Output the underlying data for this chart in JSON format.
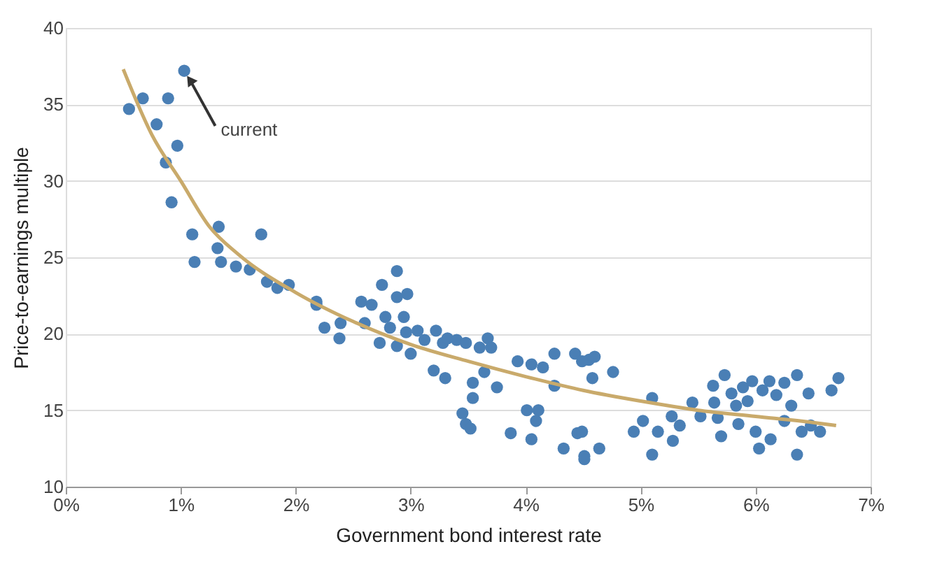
{
  "chart_data": {
    "type": "scatter",
    "xlabel": "Government bond interest rate",
    "ylabel": "Price-to-earnings multiple",
    "xlim": [
      0,
      7
    ],
    "ylim": [
      10,
      40
    ],
    "xticks": [
      {
        "value": 0,
        "label": "0%"
      },
      {
        "value": 1,
        "label": "1%"
      },
      {
        "value": 2,
        "label": "2%"
      },
      {
        "value": 3,
        "label": "3%"
      },
      {
        "value": 4,
        "label": "4%"
      },
      {
        "value": 5,
        "label": "5%"
      },
      {
        "value": 6,
        "label": "6%"
      },
      {
        "value": 7,
        "label": "7%"
      }
    ],
    "yticks": [
      10,
      15,
      20,
      25,
      30,
      35,
      40
    ],
    "grid": "y",
    "marker": "circle",
    "annotations": [
      {
        "text": "current",
        "x": 1.03,
        "y": 37.2
      }
    ],
    "series": [
      {
        "color": "#4a7fb5",
        "x": [
          0.55,
          0.67,
          0.89,
          1.03,
          0.79,
          0.97,
          0.87,
          0.92,
          1.1,
          1.12,
          1.33,
          1.32,
          1.35,
          1.48,
          1.6,
          1.7,
          1.75,
          1.84,
          1.94,
          2.18,
          2.18,
          2.25,
          2.39,
          2.38,
          2.57,
          2.66,
          2.75,
          2.88,
          2.88,
          2.97,
          2.6,
          2.73,
          2.78,
          2.82,
          2.88,
          2.94,
          2.96,
          3.0,
          3.06,
          3.12,
          3.22,
          3.28,
          3.32,
          3.4,
          3.48,
          3.2,
          3.3,
          3.45,
          3.48,
          3.52,
          3.54,
          3.54,
          3.6,
          3.67,
          3.7,
          3.75,
          3.64,
          3.87,
          4.05,
          4.01,
          4.11,
          4.09,
          3.93,
          4.05,
          4.15,
          4.25,
          4.25,
          4.33,
          4.43,
          4.45,
          4.51,
          4.55,
          4.49,
          4.6,
          4.58,
          4.76,
          4.49,
          4.51,
          4.64,
          4.94,
          5.02,
          5.1,
          5.15,
          5.1,
          5.27,
          5.28,
          5.34,
          5.45,
          5.52,
          5.63,
          5.64,
          5.67,
          5.7,
          5.73,
          5.79,
          5.83,
          5.85,
          5.89,
          5.93,
          5.97,
          6.0,
          6.03,
          6.06,
          6.12,
          6.13,
          6.18,
          6.25,
          6.25,
          6.31,
          6.36,
          6.36,
          6.4,
          6.46,
          6.48,
          6.56,
          6.66,
          6.72
        ],
        "values": [
          34.7,
          35.4,
          35.4,
          37.2,
          33.7,
          32.3,
          31.2,
          28.6,
          26.5,
          24.7,
          27.0,
          25.6,
          24.7,
          24.4,
          24.2,
          26.5,
          23.4,
          23.0,
          23.2,
          22.1,
          21.9,
          20.4,
          20.7,
          19.7,
          22.1,
          21.9,
          23.2,
          24.1,
          22.4,
          22.6,
          20.7,
          19.4,
          21.1,
          20.4,
          19.2,
          21.1,
          20.1,
          18.7,
          20.2,
          19.6,
          20.2,
          19.4,
          19.7,
          19.6,
          19.4,
          17.6,
          17.1,
          14.8,
          14.1,
          13.8,
          16.8,
          15.8,
          19.1,
          19.7,
          19.1,
          16.5,
          17.5,
          13.5,
          13.1,
          15.0,
          15.0,
          14.3,
          18.2,
          18.0,
          17.8,
          18.7,
          16.6,
          12.5,
          18.7,
          13.5,
          11.8,
          18.3,
          18.2,
          18.5,
          17.1,
          17.5,
          13.6,
          12.0,
          12.5,
          13.6,
          14.3,
          15.8,
          13.6,
          12.1,
          14.6,
          13.0,
          14.0,
          15.5,
          14.6,
          16.6,
          15.5,
          14.5,
          13.3,
          17.3,
          16.1,
          15.3,
          14.1,
          16.5,
          15.6,
          16.9,
          13.6,
          12.5,
          16.3,
          16.9,
          13.1,
          16.0,
          16.8,
          14.3,
          15.3,
          17.3,
          12.1,
          13.6,
          16.1,
          14.0,
          13.6,
          16.3,
          17.1
        ]
      },
      {
        "type": "line",
        "marker": "none",
        "line_style": "solid",
        "color": "#c9aa6b",
        "x": [
          0.5,
          0.75,
          1.0,
          1.25,
          1.5,
          2.0,
          2.5,
          3.0,
          3.5,
          4.0,
          4.5,
          5.0,
          5.5,
          6.0,
          6.5,
          6.7
        ],
        "values": [
          37.3,
          33.0,
          30.0,
          27.0,
          25.2,
          22.7,
          20.8,
          19.3,
          18.2,
          17.2,
          16.3,
          15.6,
          15.0,
          14.6,
          14.2,
          14.0
        ]
      }
    ]
  }
}
